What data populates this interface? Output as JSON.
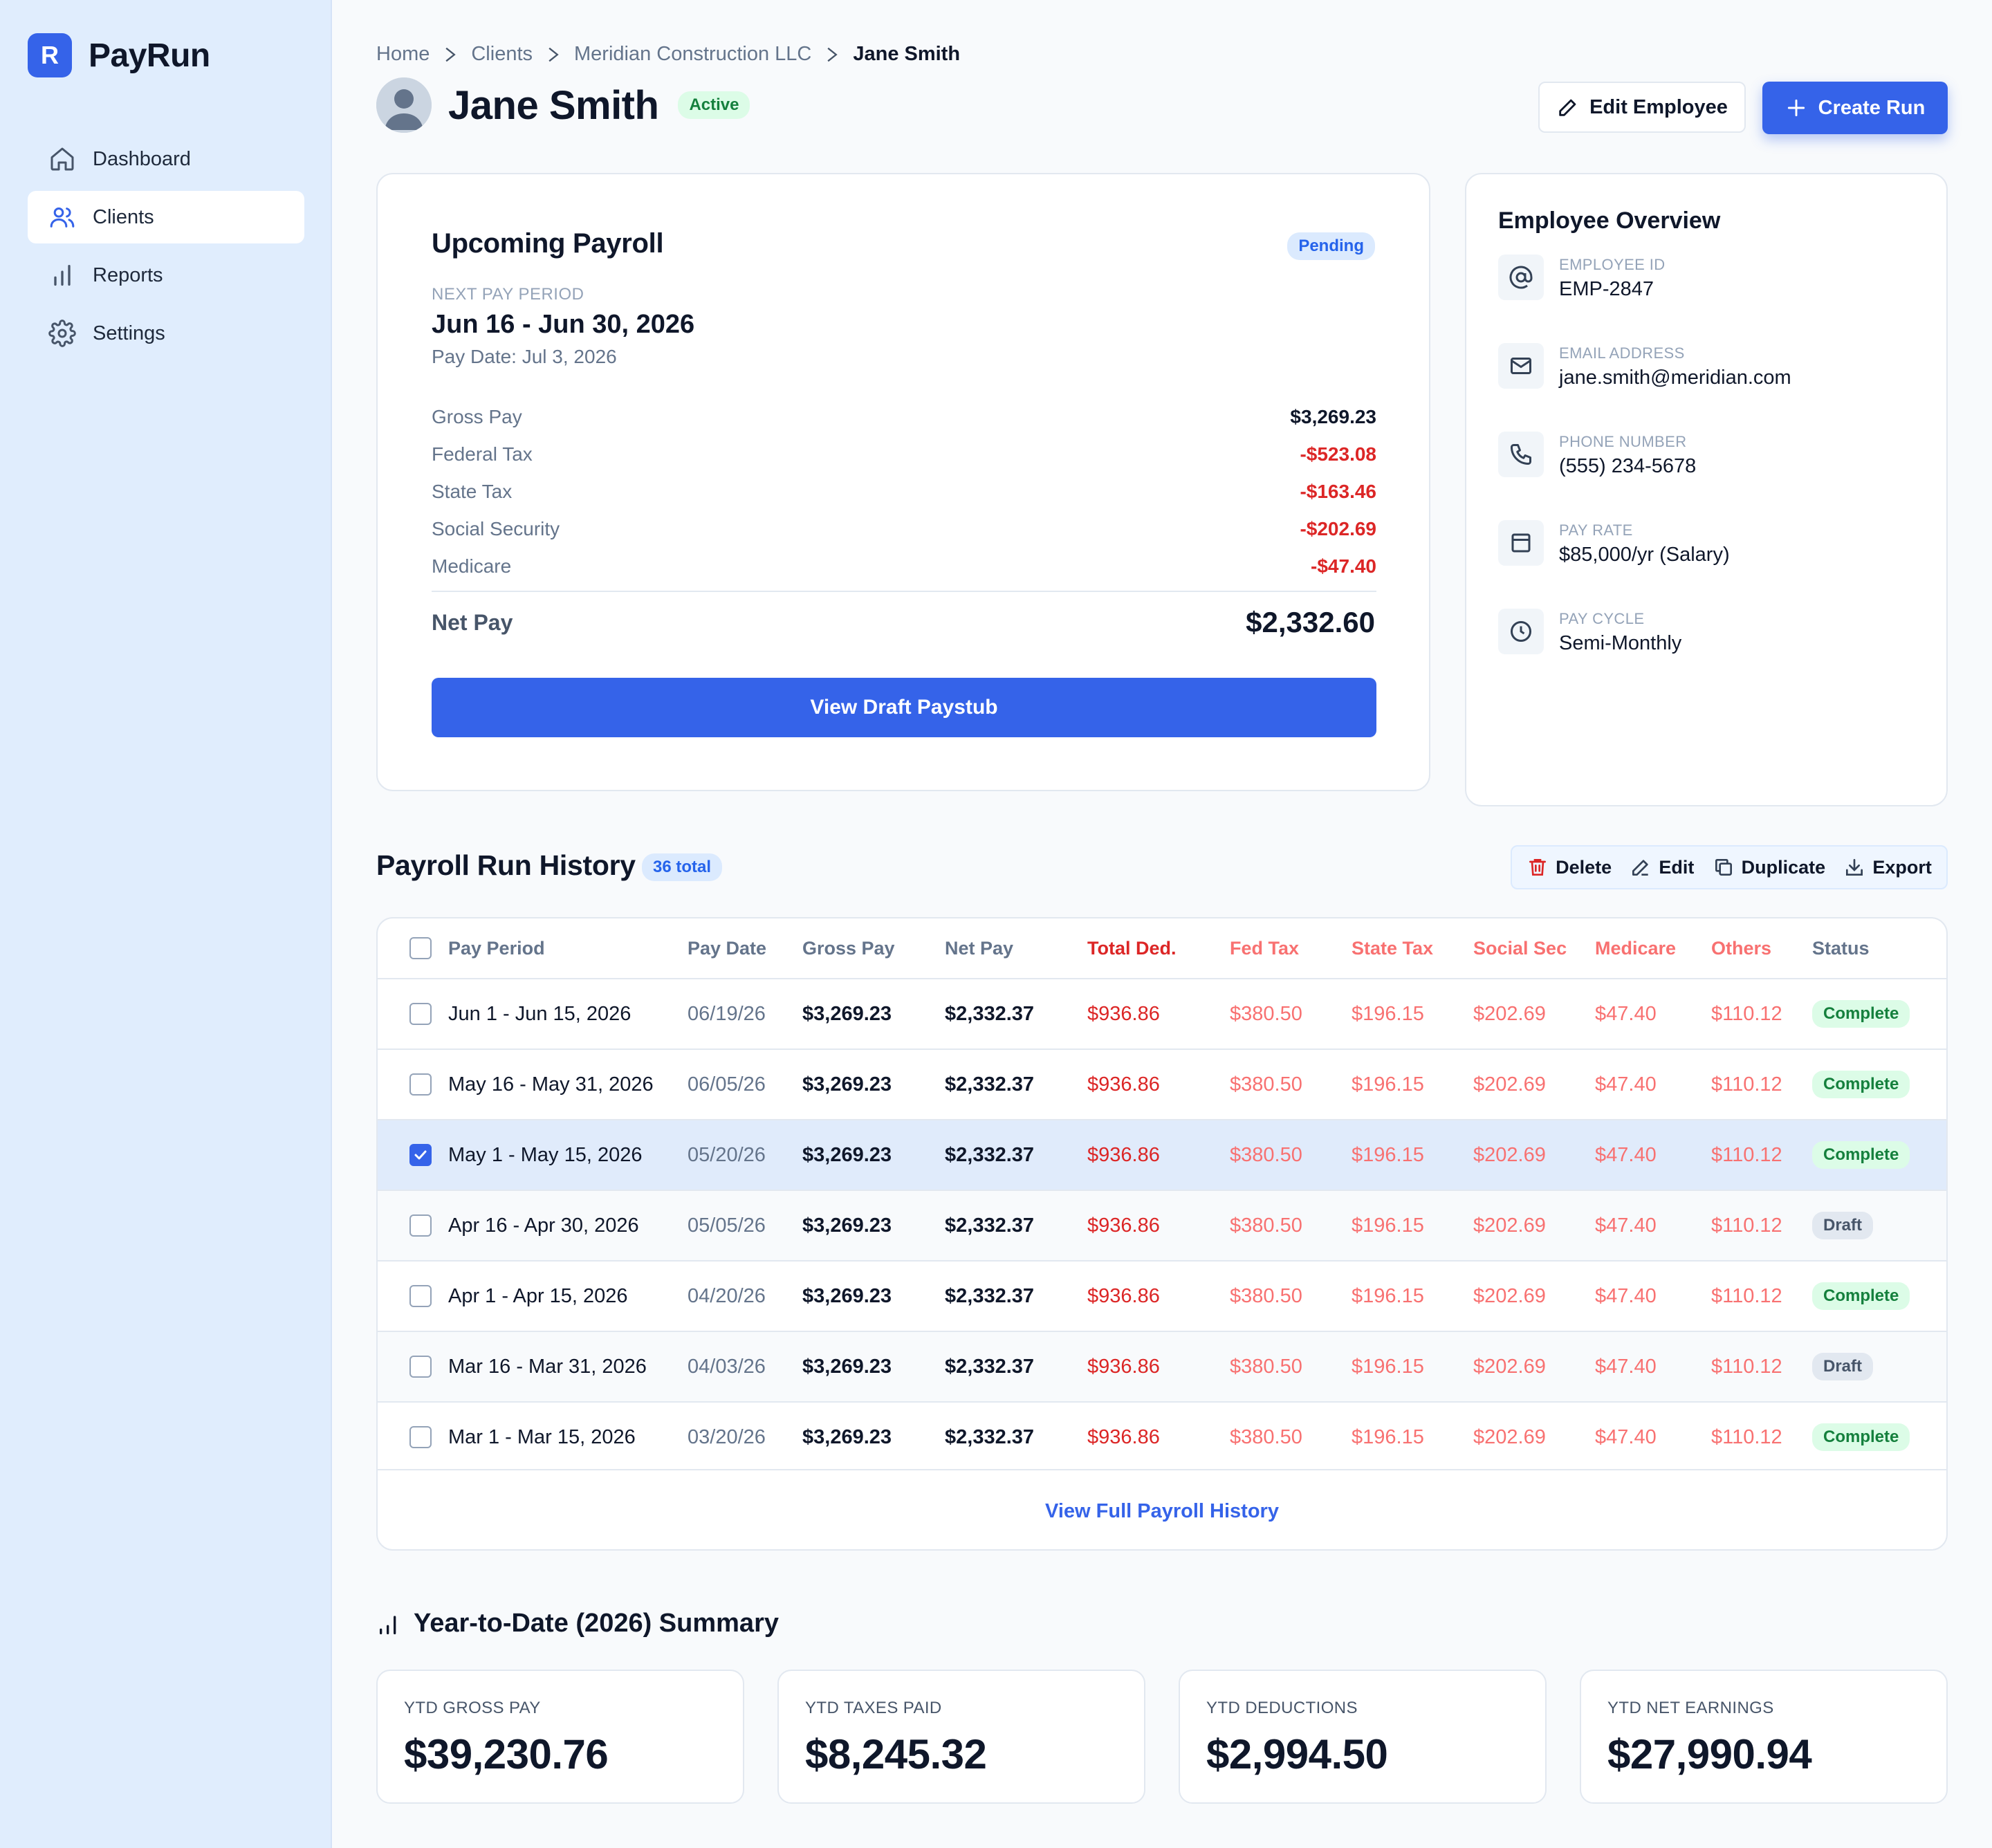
{
  "app": {
    "logo_letter": "R",
    "name": "PayRun"
  },
  "nav": [
    {
      "label": "Dashboard",
      "icon": "home-icon",
      "active": false
    },
    {
      "label": "Clients",
      "icon": "users-icon",
      "active": true
    },
    {
      "label": "Reports",
      "icon": "bar-chart-icon",
      "active": false
    },
    {
      "label": "Settings",
      "icon": "gear-icon",
      "active": false
    }
  ],
  "breadcrumb": [
    "Home",
    "Clients",
    "Meridian Construction LLC",
    "Jane Smith"
  ],
  "employee": {
    "name": "Jane Smith",
    "status": "Active"
  },
  "actions": {
    "edit": "Edit Employee",
    "create": "Create Run"
  },
  "upcoming": {
    "title": "Upcoming Payroll",
    "status": "Pending",
    "next_period_label": "NEXT PAY PERIOD",
    "period": "Jun 16 - Jun 30, 2026",
    "pay_date": "Pay Date: Jul 3, 2026",
    "lines": [
      {
        "label": "Gross Pay",
        "value": "$3,269.23",
        "negative": false
      },
      {
        "label": "Federal Tax",
        "value": "-$523.08",
        "negative": true
      },
      {
        "label": "State Tax",
        "value": "-$163.46",
        "negative": true
      },
      {
        "label": "Social Security",
        "value": "-$202.69",
        "negative": true
      },
      {
        "label": "Medicare",
        "value": "-$47.40",
        "negative": true
      }
    ],
    "net_label": "Net Pay",
    "net_value": "$2,332.60",
    "button": "View Draft Paystub"
  },
  "overview": {
    "title": "Employee Overview",
    "items": [
      {
        "label": "EMPLOYEE ID",
        "value": "EMP-2847",
        "icon": "at-sign-icon"
      },
      {
        "label": "EMAIL ADDRESS",
        "value": "jane.smith@meridian.com",
        "icon": "mail-icon"
      },
      {
        "label": "PHONE NUMBER",
        "value": "(555) 234-5678",
        "icon": "phone-icon"
      },
      {
        "label": "PAY RATE",
        "value": "$85,000/yr (Salary)",
        "icon": "card-icon"
      },
      {
        "label": "PAY CYCLE",
        "value": "Semi-Monthly",
        "icon": "clock-icon"
      }
    ]
  },
  "history": {
    "title": "Payroll Run History",
    "total": "36 total",
    "toolbar": {
      "delete": "Delete",
      "edit": "Edit",
      "duplicate": "Duplicate",
      "export": "Export"
    },
    "columns": [
      "Pay Period",
      "Pay Date",
      "Gross Pay",
      "Net Pay",
      "Total Ded.",
      "Fed Tax",
      "State Tax",
      "Social Sec",
      "Medicare",
      "Others",
      "Status"
    ],
    "rows": [
      {
        "checked": false,
        "period": "Jun 1 - Jun 15, 2026",
        "date": "06/19/26",
        "gross": "$3,269.23",
        "net": "$2,332.37",
        "ded": "$936.86",
        "fed": "$380.50",
        "state": "$196.15",
        "ss": "$202.69",
        "med": "$47.40",
        "others": "$110.12",
        "status": "Complete"
      },
      {
        "checked": false,
        "period": "May 16 - May 31, 2026",
        "date": "06/05/26",
        "gross": "$3,269.23",
        "net": "$2,332.37",
        "ded": "$936.86",
        "fed": "$380.50",
        "state": "$196.15",
        "ss": "$202.69",
        "med": "$47.40",
        "others": "$110.12",
        "status": "Complete"
      },
      {
        "checked": true,
        "period": "May 1 - May 15, 2026",
        "date": "05/20/26",
        "gross": "$3,269.23",
        "net": "$2,332.37",
        "ded": "$936.86",
        "fed": "$380.50",
        "state": "$196.15",
        "ss": "$202.69",
        "med": "$47.40",
        "others": "$110.12",
        "status": "Complete"
      },
      {
        "checked": false,
        "period": "Apr 16 - Apr 30, 2026",
        "date": "05/05/26",
        "gross": "$3,269.23",
        "net": "$2,332.37",
        "ded": "$936.86",
        "fed": "$380.50",
        "state": "$196.15",
        "ss": "$202.69",
        "med": "$47.40",
        "others": "$110.12",
        "status": "Draft"
      },
      {
        "checked": false,
        "period": "Apr 1 - Apr 15, 2026",
        "date": "04/20/26",
        "gross": "$3,269.23",
        "net": "$2,332.37",
        "ded": "$936.86",
        "fed": "$380.50",
        "state": "$196.15",
        "ss": "$202.69",
        "med": "$47.40",
        "others": "$110.12",
        "status": "Complete"
      },
      {
        "checked": false,
        "period": "Mar 16 - Mar 31, 2026",
        "date": "04/03/26",
        "gross": "$3,269.23",
        "net": "$2,332.37",
        "ded": "$936.86",
        "fed": "$380.50",
        "state": "$196.15",
        "ss": "$202.69",
        "med": "$47.40",
        "others": "$110.12",
        "status": "Draft"
      },
      {
        "checked": false,
        "period": "Mar 1 - Mar 15, 2026",
        "date": "03/20/26",
        "gross": "$3,269.23",
        "net": "$2,332.37",
        "ded": "$936.86",
        "fed": "$380.50",
        "state": "$196.15",
        "ss": "$202.69",
        "med": "$47.40",
        "others": "$110.12",
        "status": "Complete"
      }
    ],
    "view_full": "View Full Payroll History"
  },
  "ytd": {
    "title": "Year-to-Date (2026) Summary",
    "cards": [
      {
        "label": "YTD GROSS PAY",
        "value": "$39,230.76"
      },
      {
        "label": "YTD TAXES PAID",
        "value": "$8,245.32"
      },
      {
        "label": "YTD DEDUCTIONS",
        "value": "$2,994.50"
      },
      {
        "label": "YTD NET EARNINGS",
        "value": "$27,990.94"
      }
    ]
  },
  "colors": {
    "accent": "#3563e9",
    "negative": "#dc2626",
    "muted_negative": "#f87171",
    "success": "#15803d",
    "sidebar_bg": "#e0edfd"
  }
}
